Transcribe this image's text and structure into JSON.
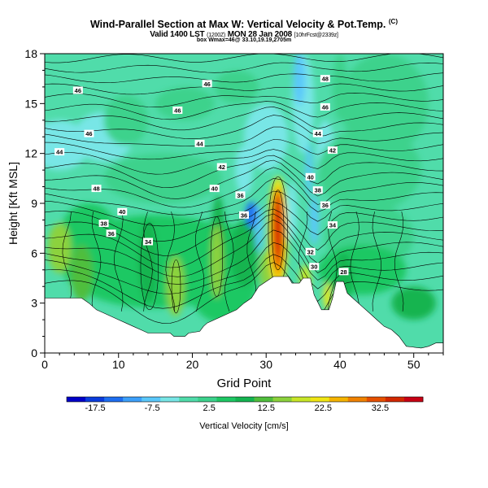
{
  "header": {
    "title": "Wind-Parallel Section at Max W: Vertical Velocity & Pot.Temp.",
    "title_mark": "(C)",
    "valid_line": "Valid 1400 LST",
    "valid_utc": "(1200Z)",
    "valid_date": "MON 28 Jan 2008",
    "valid_note": "[10hrFcst@2339z]",
    "info_line": "box Wmax=46@ 33.10,19.19,2705m"
  },
  "chart_data": {
    "type": "heatmap",
    "xlabel": "Grid Point",
    "ylabel": "Height [Kft MSL]",
    "xlim": [
      0,
      54
    ],
    "ylim": [
      0,
      18
    ],
    "xticks": [
      0,
      10,
      20,
      30,
      40,
      50
    ],
    "yticks": [
      0,
      3,
      6,
      9,
      12,
      15,
      18
    ],
    "colorbar": {
      "label": "Vertical Velocity [cm/s]",
      "tick_labels": [
        "-17.5",
        "-7.5",
        "2.5",
        "12.5",
        "22.5",
        "32.5"
      ],
      "tick_values": [
        -17.5,
        -7.5,
        2.5,
        12.5,
        22.5,
        32.5
      ],
      "range": [
        -22.5,
        40
      ],
      "colors": [
        "#0000c8",
        "#0a3cdc",
        "#1e6ef0",
        "#3ca0fa",
        "#5ac8fa",
        "#78e6e6",
        "#50dcaa",
        "#3cd28c",
        "#1ec864",
        "#14b450",
        "#50be3c",
        "#8cd23c",
        "#c8e628",
        "#f0e614",
        "#f5b400",
        "#f08200",
        "#e65000",
        "#d22800",
        "#c80014"
      ]
    },
    "contour_labels": [
      {
        "text": "46",
        "x": 4.5,
        "y": 15.8
      },
      {
        "text": "46",
        "x": 22,
        "y": 16.2
      },
      {
        "text": "46",
        "x": 18,
        "y": 14.6
      },
      {
        "text": "46",
        "x": 6,
        "y": 13.2
      },
      {
        "text": "44",
        "x": 21,
        "y": 12.6
      },
      {
        "text": "44",
        "x": 2,
        "y": 12.1
      },
      {
        "text": "42",
        "x": 24,
        "y": 11.2
      },
      {
        "text": "40",
        "x": 23,
        "y": 9.9
      },
      {
        "text": "48",
        "x": 7,
        "y": 9.9
      },
      {
        "text": "40",
        "x": 10.5,
        "y": 8.5
      },
      {
        "text": "38",
        "x": 8,
        "y": 7.8
      },
      {
        "text": "36",
        "x": 9,
        "y": 7.2
      },
      {
        "text": "34",
        "x": 14,
        "y": 6.7
      },
      {
        "text": "36",
        "x": 26.5,
        "y": 9.5
      },
      {
        "text": "36",
        "x": 27,
        "y": 8.3
      },
      {
        "text": "48",
        "x": 38,
        "y": 16.5
      },
      {
        "text": "46",
        "x": 38,
        "y": 14.8
      },
      {
        "text": "44",
        "x": 37,
        "y": 13.2
      },
      {
        "text": "42",
        "x": 39,
        "y": 12.2
      },
      {
        "text": "40",
        "x": 36,
        "y": 10.6
      },
      {
        "text": "38",
        "x": 37,
        "y": 9.8
      },
      {
        "text": "36",
        "x": 38,
        "y": 8.9
      },
      {
        "text": "34",
        "x": 39,
        "y": 7.7
      },
      {
        "text": "32",
        "x": 36,
        "y": 6.1
      },
      {
        "text": "30",
        "x": 36.5,
        "y": 5.2
      },
      {
        "text": "28",
        "x": 40.5,
        "y": 4.9
      }
    ]
  }
}
